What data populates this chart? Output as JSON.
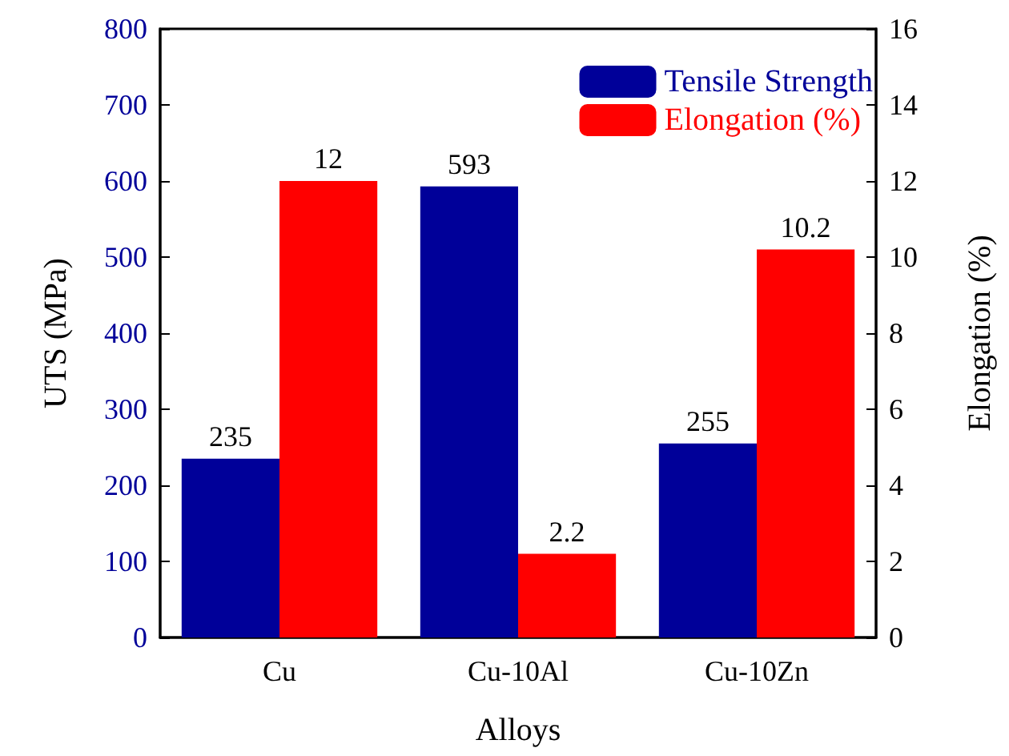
{
  "chart_data": {
    "type": "bar",
    "xlabel": "Alloys",
    "ylabel": "UTS (MPa)",
    "y2label": "Elongation (%)",
    "categories": [
      "Cu",
      "Cu-10Al",
      "Cu-10Zn"
    ],
    "series": [
      {
        "name": "Tensile Strength",
        "color": "#000099",
        "values": [
          235,
          593,
          255
        ]
      },
      {
        "name": "Elongation (%)",
        "color": "#ff0000",
        "values": [
          12,
          2.2,
          10.2
        ],
        "axis": "y2"
      }
    ],
    "ylim": [
      0,
      800
    ],
    "yticks": [
      0,
      100,
      200,
      300,
      400,
      500,
      600,
      700,
      800
    ],
    "y2lim": [
      0,
      16
    ],
    "y2ticks": [
      0,
      2,
      4,
      6,
      8,
      10,
      12,
      14,
      16
    ],
    "data_labels": true,
    "legend": "top right"
  }
}
